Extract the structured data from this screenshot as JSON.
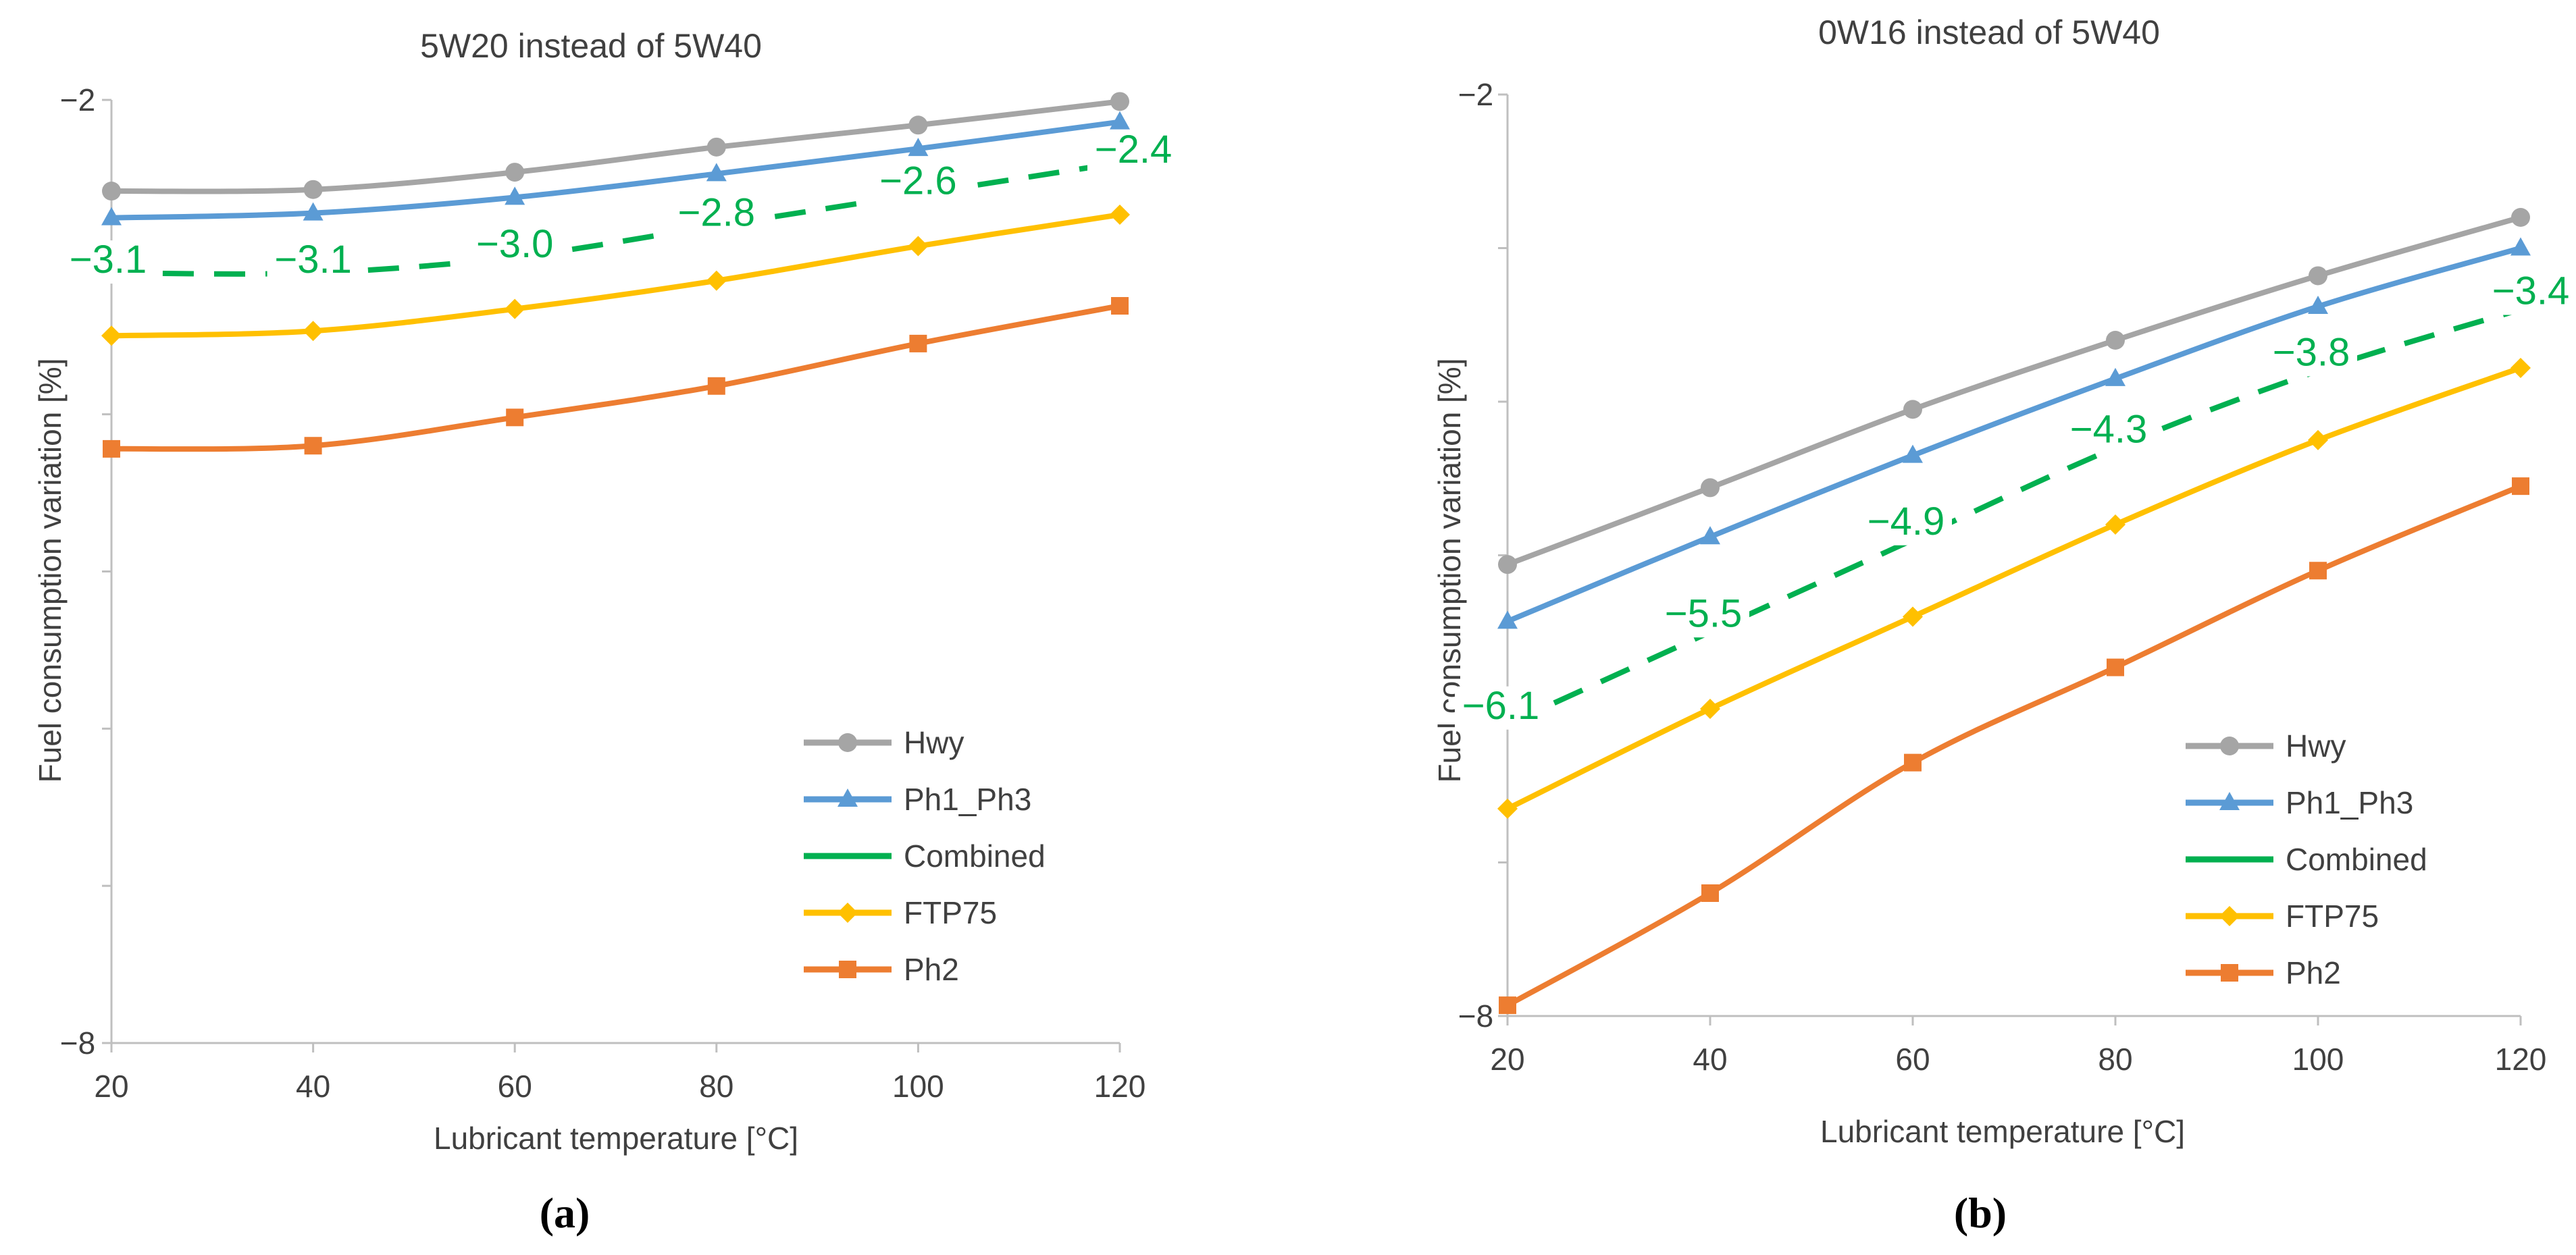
{
  "chart_data": [
    {
      "type": "line",
      "title": "5W20 instead of 5W40",
      "xlabel": "Lubricant temperature [°C]",
      "ylabel": "Fuel consumption variation [%]",
      "sublabel": "(a)",
      "x": [
        20,
        40,
        60,
        80,
        100,
        120
      ],
      "xlim": [
        20,
        120
      ],
      "ylim": [
        -8,
        -2
      ],
      "x_ticks": [
        "20",
        "40",
        "60",
        "80",
        "100",
        "120"
      ],
      "y_tick_labels": [
        "−2",
        "−8"
      ],
      "y_minor_ticks": [
        -3,
        -4,
        -5,
        -6,
        -7
      ],
      "legend_position": "bottom-right",
      "series": [
        {
          "name": "Hwy",
          "color": "#a5a5a5",
          "marker": "circle",
          "values": [
            -2.58,
            -2.57,
            -2.46,
            -2.3,
            -2.16,
            -2.01
          ]
        },
        {
          "name": "Ph1_Ph3",
          "color": "#5b9bd5",
          "marker": "triangle",
          "values": [
            -2.75,
            -2.72,
            -2.62,
            -2.47,
            -2.31,
            -2.14
          ]
        },
        {
          "name": "Combined",
          "color": "#00b050",
          "marker": "none",
          "dashed": true,
          "values": [
            -3.1,
            -3.1,
            -3.0,
            -2.8,
            -2.6,
            -2.4
          ]
        },
        {
          "name": "FTP75",
          "color": "#ffc000",
          "marker": "diamond",
          "values": [
            -3.5,
            -3.47,
            -3.33,
            -3.15,
            -2.93,
            -2.73
          ]
        },
        {
          "name": "Ph2",
          "color": "#ed7d31",
          "marker": "square",
          "values": [
            -4.22,
            -4.2,
            -4.02,
            -3.82,
            -3.55,
            -3.31
          ]
        }
      ],
      "data_labels": [
        "−3.1",
        "−3.1",
        "−3.0",
        "−2.8",
        "−2.6",
        "−2.4"
      ]
    },
    {
      "type": "line",
      "title": "0W16 instead of 5W40",
      "xlabel": "Lubricant temperature [°C]",
      "ylabel": "Fuel consumption variation [%]",
      "sublabel": "(b)",
      "x": [
        20,
        40,
        60,
        80,
        100,
        120
      ],
      "xlim": [
        20,
        120
      ],
      "ylim": [
        -8,
        -2
      ],
      "x_ticks": [
        "20",
        "40",
        "60",
        "80",
        "100",
        "120"
      ],
      "y_tick_labels": [
        "−2",
        "−8"
      ],
      "y_minor_ticks": [
        -3,
        -4,
        -5,
        -6,
        -7
      ],
      "legend_position": "bottom-right",
      "series": [
        {
          "name": "Hwy",
          "color": "#a5a5a5",
          "marker": "circle",
          "values": [
            -5.06,
            -4.56,
            -4.05,
            -3.6,
            -3.18,
            -2.8
          ]
        },
        {
          "name": "Ph1_Ph3",
          "color": "#5b9bd5",
          "marker": "triangle",
          "values": [
            -5.43,
            -4.88,
            -4.35,
            -3.85,
            -3.38,
            -3.0
          ]
        },
        {
          "name": "Combined",
          "color": "#00b050",
          "marker": "none",
          "dashed": true,
          "values": [
            -6.1,
            -5.5,
            -4.9,
            -4.3,
            -3.8,
            -3.4
          ]
        },
        {
          "name": "FTP75",
          "color": "#ffc000",
          "marker": "diamond",
          "values": [
            -6.65,
            -6.0,
            -5.4,
            -4.8,
            -4.25,
            -3.78
          ]
        },
        {
          "name": "Ph2",
          "color": "#ed7d31",
          "marker": "square",
          "values": [
            -7.93,
            -7.2,
            -6.35,
            -5.73,
            -5.1,
            -4.55
          ]
        }
      ],
      "data_labels": [
        "−6.1",
        "−5.5",
        "−4.9",
        "−4.3",
        "−3.8",
        "−3.4"
      ]
    }
  ]
}
